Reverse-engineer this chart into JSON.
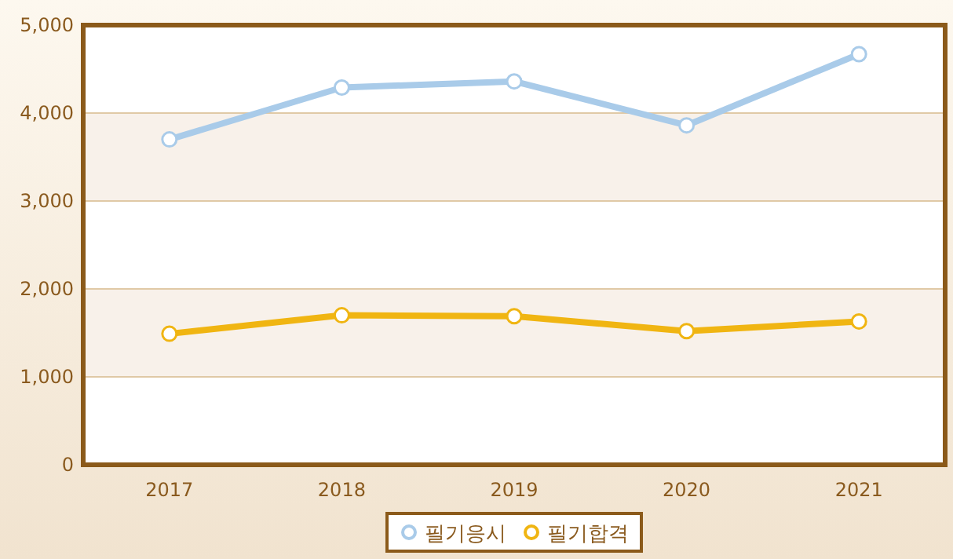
{
  "chart_data": {
    "type": "line",
    "categories": [
      "2017",
      "2018",
      "2019",
      "2020",
      "2021"
    ],
    "series": [
      {
        "name": "필기응시",
        "color": "#a9cbe9",
        "values": [
          3700,
          4290,
          4360,
          3860,
          4670
        ]
      },
      {
        "name": "필기합격",
        "color": "#f0b512",
        "values": [
          1490,
          1700,
          1690,
          1520,
          1630
        ]
      }
    ],
    "ylim": [
      0,
      5000
    ],
    "yticks": [
      {
        "value": 0,
        "label": "0"
      },
      {
        "value": 1000,
        "label": "1,000"
      },
      {
        "value": 2000,
        "label": "2,000"
      },
      {
        "value": 3000,
        "label": "3,000"
      },
      {
        "value": 4000,
        "label": "4,000"
      },
      {
        "value": 5000,
        "label": "5,000"
      }
    ],
    "grid": "y",
    "legend": "bottom",
    "marker": "circle",
    "line_style": "solid"
  }
}
